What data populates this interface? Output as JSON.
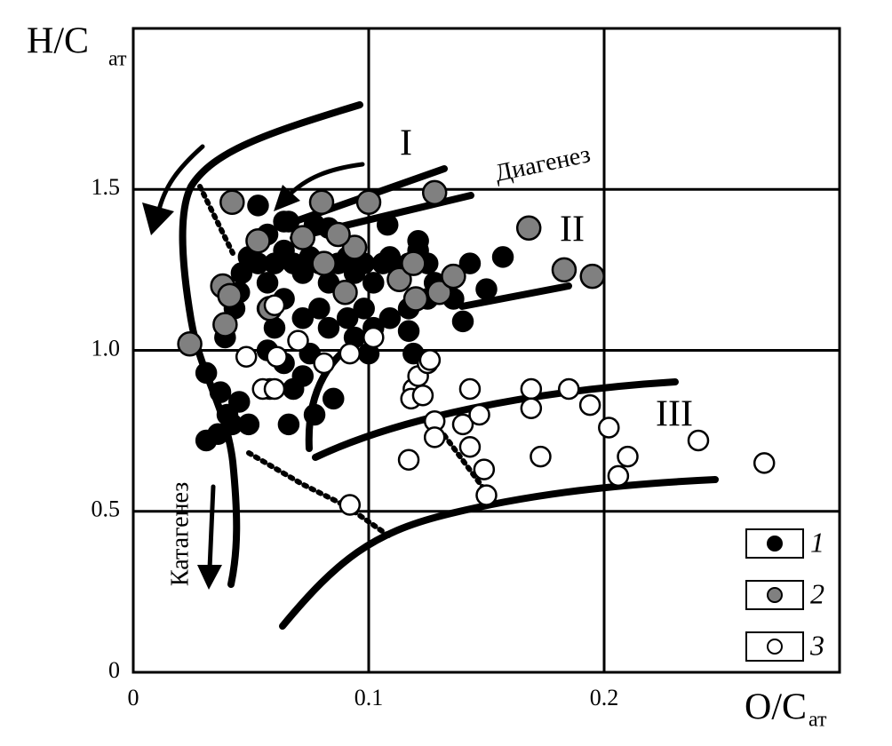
{
  "chart_data": {
    "type": "scatter",
    "y_label": "H/C",
    "y_label_sub": "ат",
    "x_label": "O/C",
    "x_label_sub": "ат",
    "annotations": [
      "I",
      "II",
      "III",
      "Диагенез",
      "Катагенез"
    ],
    "xlim": [
      0,
      0.3
    ],
    "ylim": [
      0,
      2.0
    ],
    "xticks": [
      0,
      0.1,
      0.2
    ],
    "yticks": [
      0,
      0.5,
      {
        "value": 1,
        "label": "1.0"
      },
      1.5
    ],
    "grid": true,
    "legend": "lower right",
    "series": [
      {
        "name": "1",
        "color": "#000000",
        "x": [
          0.031,
          0.037,
          0.039,
          0.043,
          0.045,
          0.046,
          0.049,
          0.053,
          0.057,
          0.053,
          0.057,
          0.06,
          0.064,
          0.068,
          0.072,
          0.075,
          0.079,
          0.083,
          0.087,
          0.091,
          0.094,
          0.098,
          0.102,
          0.106,
          0.109,
          0.113,
          0.117,
          0.121,
          0.125,
          0.128,
          0.132,
          0.136,
          0.14,
          0.143,
          0.157,
          0.15,
          0.057,
          0.06,
          0.064,
          0.072,
          0.079,
          0.083,
          0.091,
          0.098,
          0.102,
          0.109,
          0.117,
          0.125,
          0.057,
          0.064,
          0.068,
          0.072,
          0.066,
          0.077,
          0.085,
          0.045,
          0.04,
          0.036,
          0.042,
          0.049,
          0.031,
          0.053,
          0.066,
          0.077,
          0.108,
          0.121,
          0.117,
          0.119,
          0.1,
          0.094,
          0.075,
          0.058,
          0.064,
          0.083
        ],
        "y": [
          0.72,
          0.87,
          1.04,
          1.13,
          1.18,
          1.24,
          1.29,
          1.34,
          1.36,
          1.27,
          1.21,
          1.27,
          1.31,
          1.27,
          1.24,
          1.29,
          1.27,
          1.21,
          1.27,
          1.29,
          1.24,
          1.27,
          1.21,
          1.27,
          1.29,
          1.24,
          1.27,
          1.31,
          1.27,
          1.21,
          1.18,
          1.16,
          1.09,
          1.27,
          1.29,
          1.19,
          1.13,
          1.07,
          1.16,
          1.1,
          1.13,
          1.07,
          1.1,
          1.13,
          1.07,
          1.1,
          1.13,
          1.16,
          1.0,
          0.96,
          0.88,
          0.92,
          0.77,
          0.8,
          0.85,
          0.84,
          0.8,
          0.74,
          0.77,
          0.77,
          0.93,
          1.45,
          1.4,
          1.39,
          1.39,
          1.34,
          1.06,
          0.99,
          0.99,
          1.04,
          0.99,
          0.88,
          1.4,
          1.38
        ]
      },
      {
        "name": "2",
        "color": "#808080",
        "x": [
          0.024,
          0.042,
          0.038,
          0.041,
          0.039,
          0.058,
          0.072,
          0.081,
          0.09,
          0.094,
          0.1,
          0.113,
          0.119,
          0.12,
          0.13,
          0.136,
          0.128,
          0.168,
          0.183,
          0.195,
          0.08,
          0.053,
          0.087
        ],
        "y": [
          1.02,
          1.46,
          1.2,
          1.17,
          1.08,
          1.13,
          1.35,
          1.27,
          1.18,
          1.32,
          1.46,
          1.22,
          1.27,
          1.16,
          1.18,
          1.23,
          1.49,
          1.38,
          1.25,
          1.23,
          1.46,
          1.34,
          1.36
        ]
      },
      {
        "name": "3",
        "color": "#ffffff",
        "x": [
          0.048,
          0.055,
          0.06,
          0.061,
          0.07,
          0.06,
          0.081,
          0.092,
          0.102,
          0.119,
          0.121,
          0.125,
          0.126,
          0.118,
          0.128,
          0.128,
          0.14,
          0.143,
          0.143,
          0.147,
          0.149,
          0.15,
          0.169,
          0.169,
          0.173,
          0.185,
          0.194,
          0.202,
          0.21,
          0.206,
          0.24,
          0.268,
          0.117,
          0.092,
          0.123
        ],
        "y": [
          0.98,
          0.88,
          0.88,
          0.98,
          1.03,
          1.14,
          0.96,
          0.99,
          1.04,
          0.88,
          0.92,
          0.96,
          0.97,
          0.85,
          0.78,
          0.73,
          0.77,
          0.88,
          0.7,
          0.8,
          0.63,
          0.55,
          0.88,
          0.82,
          0.67,
          0.88,
          0.83,
          0.76,
          0.67,
          0.61,
          0.72,
          0.65,
          0.66,
          0.52,
          0.86
        ]
      }
    ]
  }
}
